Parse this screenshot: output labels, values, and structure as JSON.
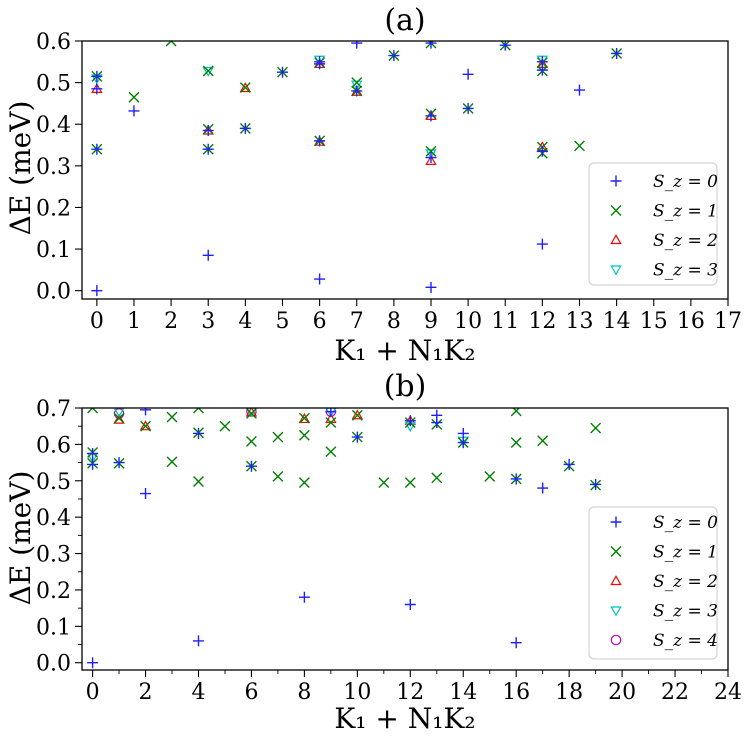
{
  "chart_data": [
    {
      "type": "scatter",
      "title": "(a)",
      "xlabel": "K₁ + N₁K₂",
      "ylabel": "ΔE (meV)",
      "xlim": [
        -0.4,
        17
      ],
      "ylim": [
        -0.02,
        0.6
      ],
      "xticks": [
        "0",
        "1",
        "2",
        "3",
        "4",
        "5",
        "6",
        "7",
        "8",
        "9",
        "10",
        "11",
        "12",
        "13",
        "14",
        "15",
        "16",
        "17"
      ],
      "yticks": [
        "0.0",
        "0.1",
        "0.2",
        "0.3",
        "0.4",
        "0.5",
        "0.6"
      ],
      "legend": "lower-right",
      "series": [
        {
          "name": "S_z = 0",
          "marker": "plus",
          "color": "#1f1fff",
          "x": [
            0,
            0,
            0,
            0,
            1,
            3,
            3,
            3,
            4,
            5,
            6,
            6,
            6,
            6,
            7,
            7,
            8,
            9,
            9,
            9,
            9,
            10,
            10,
            11,
            12,
            12,
            12,
            12,
            13,
            14
          ],
          "y": [
            0.0,
            0.34,
            0.485,
            0.515,
            0.432,
            0.085,
            0.34,
            0.385,
            0.39,
            0.525,
            0.028,
            0.36,
            0.545,
            0.55,
            0.48,
            0.595,
            0.565,
            0.008,
            0.32,
            0.42,
            0.595,
            0.438,
            0.52,
            0.59,
            0.112,
            0.335,
            0.53,
            0.55,
            0.482,
            0.57
          ]
        },
        {
          "name": "S_z = 1",
          "marker": "x",
          "color": "#008000",
          "x": [
            0,
            0,
            1,
            2,
            3,
            3,
            3,
            4,
            4,
            5,
            6,
            6,
            7,
            7,
            8,
            9,
            9,
            9,
            10,
            11,
            12,
            12,
            12,
            12,
            13,
            14
          ],
          "y": [
            0.34,
            0.515,
            0.465,
            0.6,
            0.528,
            0.34,
            0.388,
            0.39,
            0.488,
            0.525,
            0.36,
            0.548,
            0.48,
            0.5,
            0.565,
            0.595,
            0.425,
            0.335,
            0.438,
            0.59,
            0.548,
            0.528,
            0.345,
            0.33,
            0.348,
            0.57
          ]
        },
        {
          "name": "S_z = 2",
          "marker": "triangle-up",
          "color": "#ff0000",
          "x": [
            0,
            3,
            4,
            6,
            6,
            7,
            9,
            9,
            12,
            12
          ],
          "y": [
            0.485,
            0.385,
            0.487,
            0.358,
            0.545,
            0.478,
            0.42,
            0.312,
            0.345,
            0.545
          ]
        },
        {
          "name": "S_z = 3",
          "marker": "triangle-down",
          "color": "#00c0c0",
          "x": [
            0,
            3,
            6,
            7,
            9,
            12
          ],
          "y": [
            0.51,
            0.528,
            0.555,
            0.495,
            0.33,
            0.555
          ]
        }
      ]
    },
    {
      "type": "scatter",
      "title": "(b)",
      "xlabel": "K₁ + N₁K₂",
      "ylabel": "ΔE (meV)",
      "xlim": [
        -0.4,
        24
      ],
      "ylim": [
        -0.02,
        0.7
      ],
      "xticks": [
        "0",
        "2",
        "4",
        "6",
        "8",
        "10",
        "12",
        "14",
        "16",
        "18",
        "20",
        "22",
        "24"
      ],
      "yticks": [
        "0.0",
        "0.1",
        "0.2",
        "0.3",
        "0.4",
        "0.5",
        "0.6",
        "0.7"
      ],
      "legend": "lower-right",
      "series": [
        {
          "name": "S_z = 0",
          "marker": "plus",
          "color": "#1f1fff",
          "x": [
            0,
            0,
            0,
            1,
            2,
            2,
            4,
            4,
            6,
            8,
            9,
            10,
            12,
            12,
            13,
            13,
            14,
            14,
            16,
            16,
            17,
            18,
            19
          ],
          "y": [
            0.0,
            0.545,
            0.575,
            0.55,
            0.465,
            0.695,
            0.06,
            0.63,
            0.54,
            0.18,
            0.69,
            0.62,
            0.16,
            0.665,
            0.66,
            0.68,
            0.605,
            0.63,
            0.055,
            0.505,
            0.48,
            0.545,
            0.49
          ]
        },
        {
          "name": "S_z = 1",
          "marker": "x",
          "color": "#008000",
          "x": [
            0,
            0,
            0,
            1,
            1,
            2,
            3,
            3,
            4,
            4,
            4,
            5,
            6,
            6,
            6,
            7,
            7,
            8,
            8,
            8,
            9,
            9,
            10,
            10,
            11,
            12,
            12,
            13,
            13,
            14,
            15,
            16,
            16,
            16,
            17,
            18,
            19,
            19
          ],
          "y": [
            0.7,
            0.578,
            0.548,
            0.548,
            0.672,
            0.65,
            0.552,
            0.675,
            0.498,
            0.632,
            0.7,
            0.65,
            0.54,
            0.608,
            0.685,
            0.62,
            0.512,
            0.625,
            0.495,
            0.672,
            0.58,
            0.66,
            0.62,
            0.68,
            0.495,
            0.495,
            0.66,
            0.508,
            0.655,
            0.605,
            0.512,
            0.505,
            0.605,
            0.692,
            0.61,
            0.54,
            0.488,
            0.645
          ]
        },
        {
          "name": "S_z = 2",
          "marker": "triangle-up",
          "color": "#ff0000",
          "x": [
            1,
            2,
            6,
            8,
            9,
            10,
            12
          ],
          "y": [
            0.668,
            0.65,
            0.688,
            0.67,
            0.67,
            0.68,
            0.665
          ]
        },
        {
          "name": "S_z = 3",
          "marker": "triangle-down",
          "color": "#00c0c0",
          "x": [
            0,
            1,
            6,
            9,
            12,
            14
          ],
          "y": [
            0.565,
            0.69,
            0.69,
            0.69,
            0.65,
            0.61
          ]
        },
        {
          "name": "S_z = 4",
          "marker": "circle",
          "color": "#c000c0",
          "x": [
            1,
            6,
            9
          ],
          "y": [
            0.685,
            0.69,
            0.69
          ]
        }
      ]
    }
  ]
}
